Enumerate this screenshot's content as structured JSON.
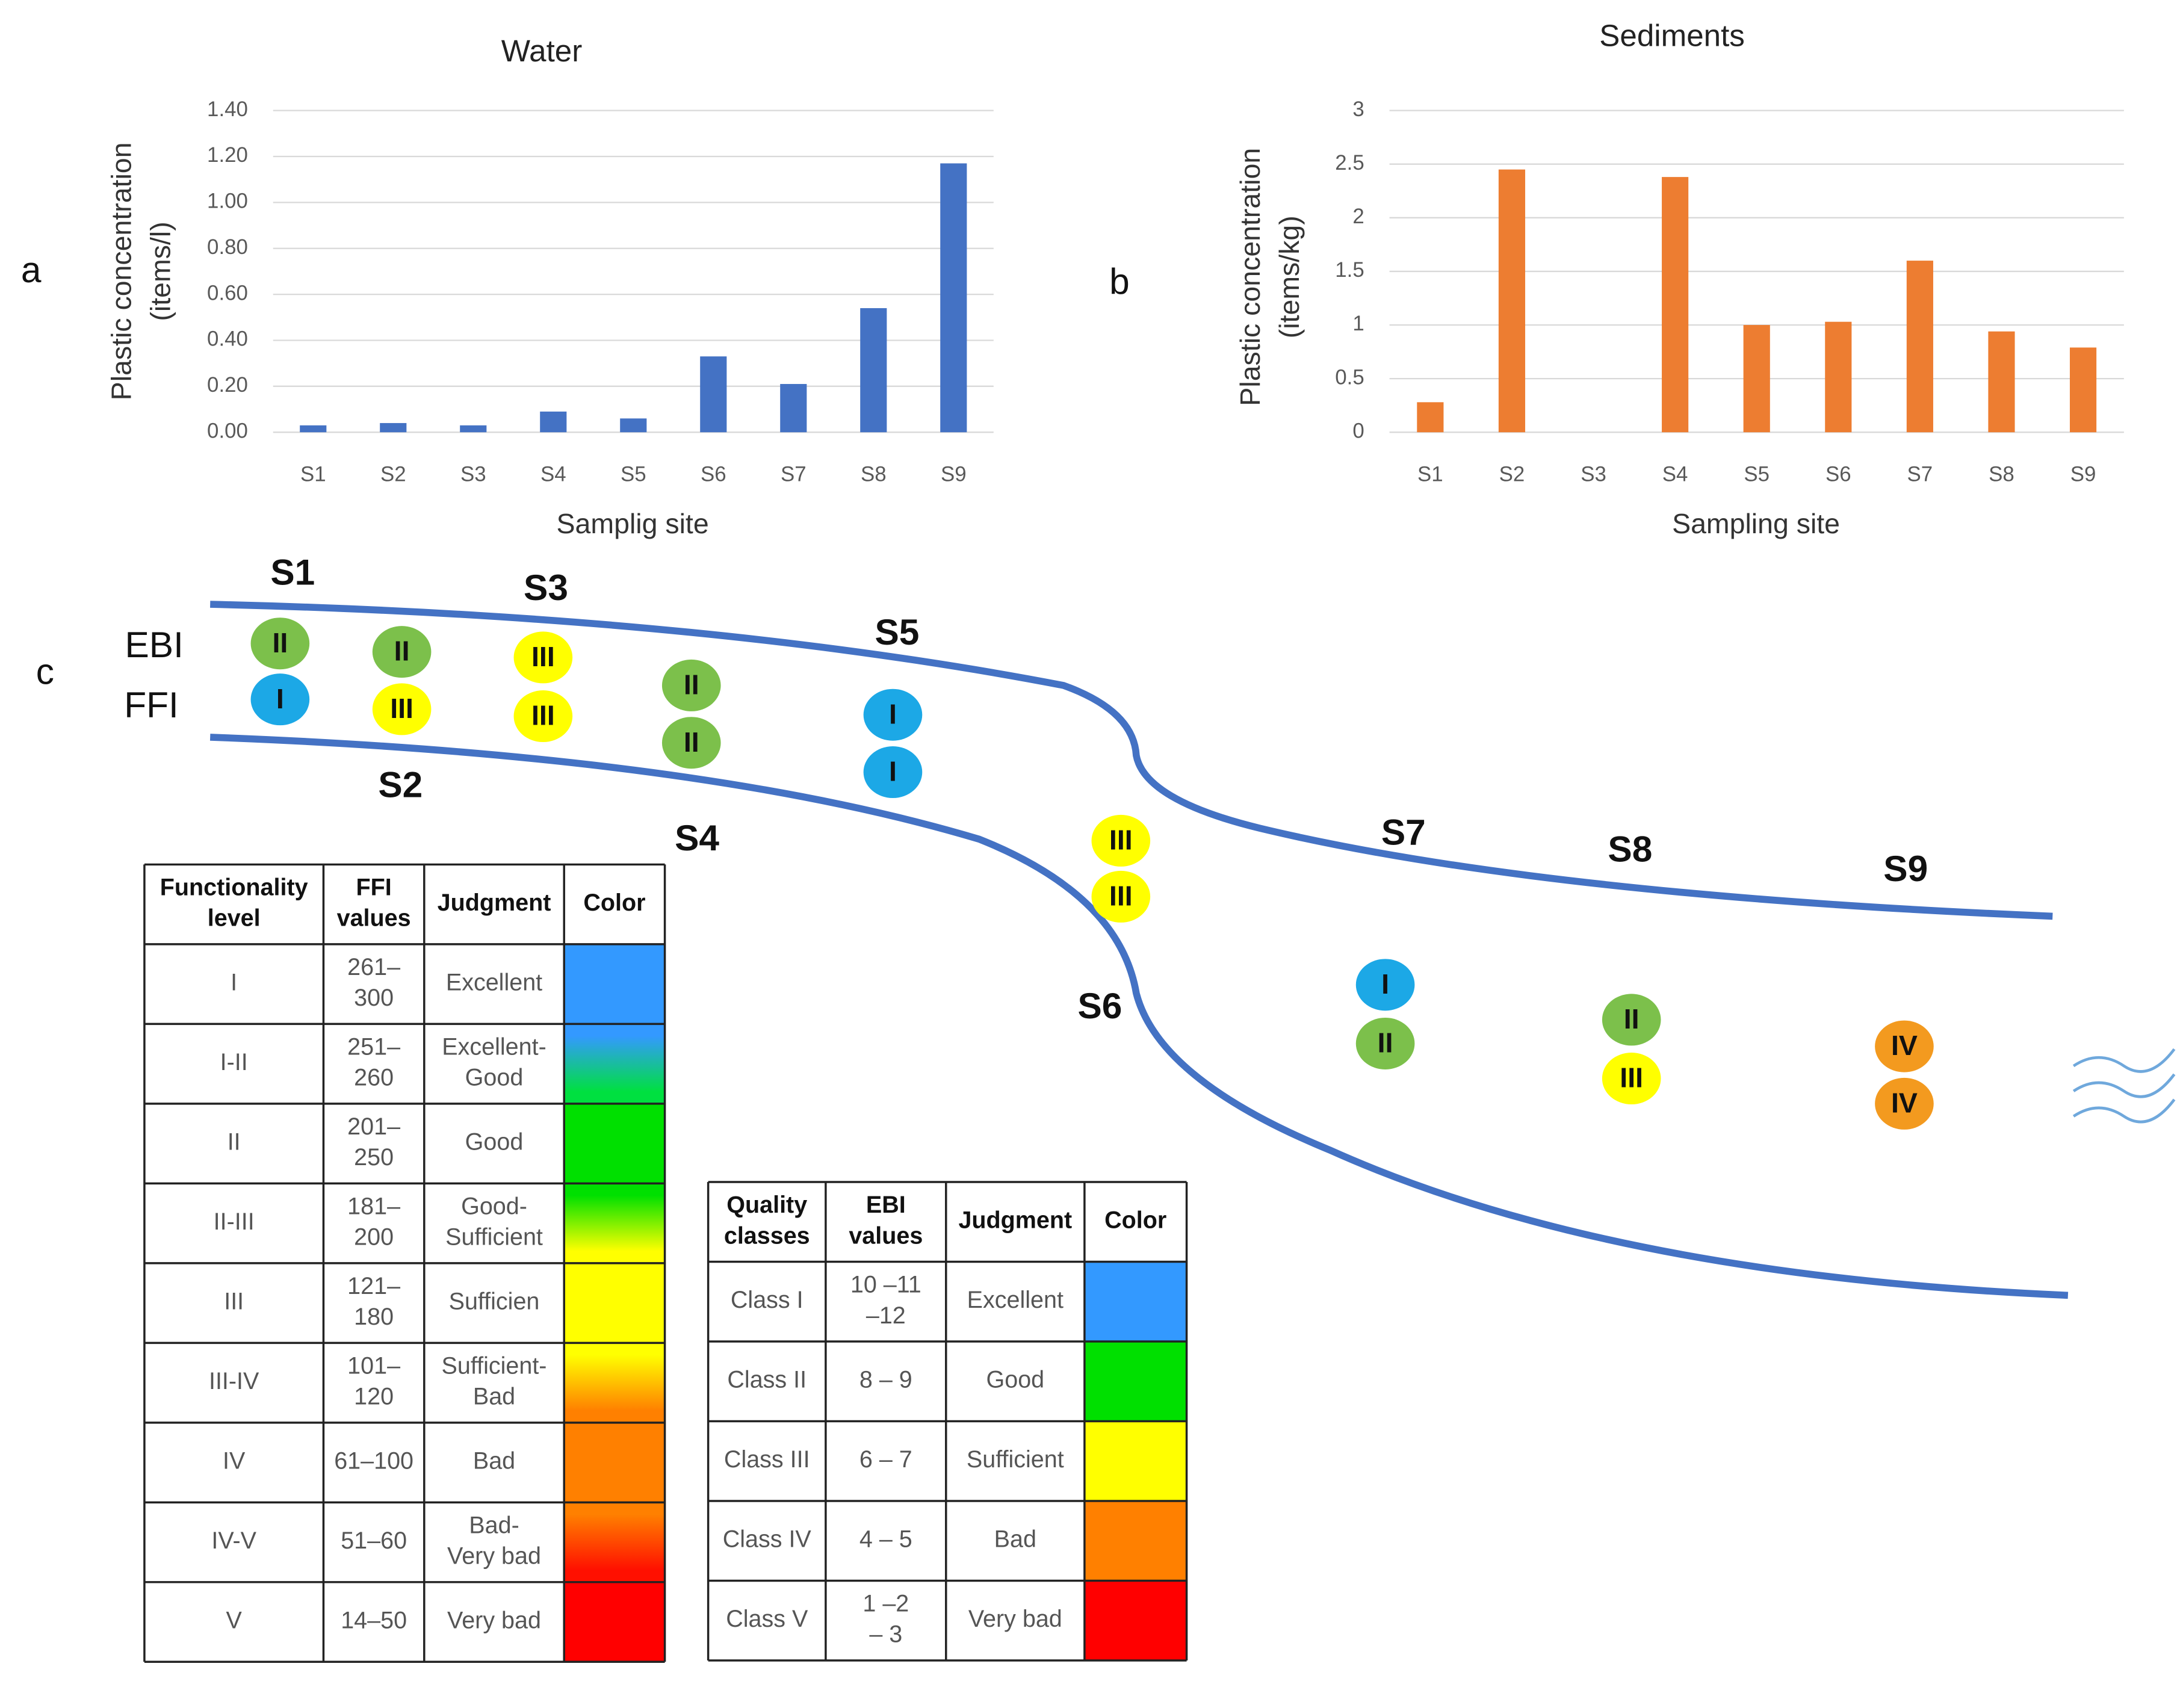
{
  "chart_data": [
    {
      "type": "bar",
      "title": "Water",
      "x_label": "Samplig site",
      "y_label": [
        "Plastic concentration",
        "(items/l)"
      ],
      "categories": [
        "S1",
        "S2",
        "S3",
        "S4",
        "S5",
        "S6",
        "S7",
        "S8",
        "S9"
      ],
      "values": [
        0.03,
        0.04,
        0.03,
        0.09,
        0.06,
        0.33,
        0.21,
        0.54,
        1.17
      ],
      "color": "#4472c4",
      "ylim": [
        0,
        1.4
      ],
      "yticks": [
        {
          "value": 0,
          "label": "0.00"
        },
        {
          "value": 0.2,
          "label": "0.20"
        },
        {
          "value": 0.4,
          "label": "0.40"
        },
        {
          "value": 0.6,
          "label": "0.60"
        },
        {
          "value": 0.8,
          "label": "0.80"
        },
        {
          "value": 1.0,
          "label": "1.00"
        },
        {
          "value": 1.2,
          "label": "1.20"
        },
        {
          "value": 1.4,
          "label": "1.40"
        }
      ],
      "grid": true
    },
    {
      "type": "bar",
      "title": "Sediments",
      "x_label": "Sampling site",
      "y_label": [
        "Plastic concentration",
        "(items/kg)"
      ],
      "categories": [
        "S1",
        "S2",
        "S3",
        "S4",
        "S5",
        "S6",
        "S7",
        "S8",
        "S9"
      ],
      "values": [
        0.28,
        2.45,
        0,
        2.38,
        1.0,
        1.03,
        1.6,
        0.94,
        0.79
      ],
      "color": "#ed7d31",
      "ylim": [
        0,
        3
      ],
      "yticks": [
        0,
        0.5,
        1,
        1.5,
        2,
        2.5,
        3
      ],
      "grid": true
    }
  ],
  "panel_labels": [
    "a",
    "b",
    "c"
  ],
  "diagram": {
    "row_labels": [
      "EBI",
      "FFI"
    ],
    "class_colors": {
      "I": "#1ca8e6",
      "II": "#7cc04b",
      "III": "#ffff00",
      "IV": "#f39a1f"
    },
    "sites": [
      {
        "label": "S1",
        "ebi": "II",
        "ffi": "I"
      },
      {
        "label": "S2",
        "ebi": "II",
        "ffi": "III"
      },
      {
        "label": "S3",
        "ebi": "III",
        "ffi": "III"
      },
      {
        "label": "S4",
        "ebi": "II",
        "ffi": "II"
      },
      {
        "label": "S5",
        "ebi": "I",
        "ffi": "I"
      },
      {
        "label": "S6",
        "ebi": "III",
        "ffi": "III"
      },
      {
        "label": "S7",
        "ebi": "I",
        "ffi": "II"
      },
      {
        "label": "S8",
        "ebi": "II",
        "ffi": "III"
      },
      {
        "label": "S9",
        "ebi": "IV",
        "ffi": "IV"
      }
    ]
  },
  "ffi_table": {
    "header": [
      [
        "Functionality",
        "level"
      ],
      [
        "FFI",
        "values"
      ],
      [
        "Judgment"
      ],
      [
        "Color"
      ]
    ],
    "rows": [
      [
        [
          "I"
        ],
        [
          "261–",
          "300"
        ],
        [
          "Excellent"
        ]
      ],
      [
        [
          "I-II"
        ],
        [
          "251–",
          "260"
        ],
        [
          "Excellent-",
          "Good"
        ]
      ],
      [
        [
          "II"
        ],
        [
          "201–",
          "250"
        ],
        [
          "Good"
        ]
      ],
      [
        [
          "II-III"
        ],
        [
          "181–",
          "200"
        ],
        [
          "Good-",
          "Sufficient"
        ]
      ],
      [
        [
          "III"
        ],
        [
          "121–",
          "180"
        ],
        [
          "Sufficien"
        ]
      ],
      [
        [
          "III-IV"
        ],
        [
          "101–",
          "120"
        ],
        [
          "Sufficient-",
          "Bad"
        ]
      ],
      [
        [
          "IV"
        ],
        [
          "61–100"
        ],
        [
          "Bad"
        ]
      ],
      [
        [
          "IV-V"
        ],
        [
          "51–60"
        ],
        [
          "Bad-",
          "Very bad"
        ]
      ],
      [
        [
          "V"
        ],
        [
          "14–50"
        ],
        [
          "Very bad"
        ]
      ]
    ],
    "row_colors": [
      [
        "#3399ff",
        "#3399ff"
      ],
      [
        "#3399ff",
        "#00e040"
      ],
      [
        "#00e000",
        "#00e000"
      ],
      [
        "#00e000",
        "#ffff00"
      ],
      [
        "#ffff00",
        "#ffff00"
      ],
      [
        "#ffff00",
        "#ff8000"
      ],
      [
        "#ff8000",
        "#ff8000"
      ],
      [
        "#ff8000",
        "#ff1000"
      ],
      [
        "#ff0000",
        "#ff0000"
      ]
    ]
  },
  "ebi_table": {
    "header": [
      [
        "Quality",
        "classes"
      ],
      [
        "EBI",
        "values"
      ],
      [
        "Judgment"
      ],
      [
        "Color"
      ]
    ],
    "rows": [
      [
        [
          "Class I"
        ],
        [
          "10 –11",
          "–12"
        ],
        [
          "Excellent"
        ]
      ],
      [
        [
          "Class II"
        ],
        [
          "8 – 9"
        ],
        [
          "Good"
        ]
      ],
      [
        [
          "Class III"
        ],
        [
          "6 – 7"
        ],
        [
          "Sufficient"
        ]
      ],
      [
        [
          "Class IV"
        ],
        [
          "4 – 5"
        ],
        [
          "Bad"
        ]
      ],
      [
        [
          "Class V"
        ],
        [
          "1 –2",
          "– 3"
        ],
        [
          "Very bad"
        ]
      ]
    ],
    "row_colors": [
      [
        "#3399ff",
        "#3399ff"
      ],
      [
        "#00e000",
        "#00e000"
      ],
      [
        "#ffff00",
        "#ffff00"
      ],
      [
        "#ff8000",
        "#ff8000"
      ],
      [
        "#ff0000",
        "#ff0000"
      ]
    ]
  }
}
